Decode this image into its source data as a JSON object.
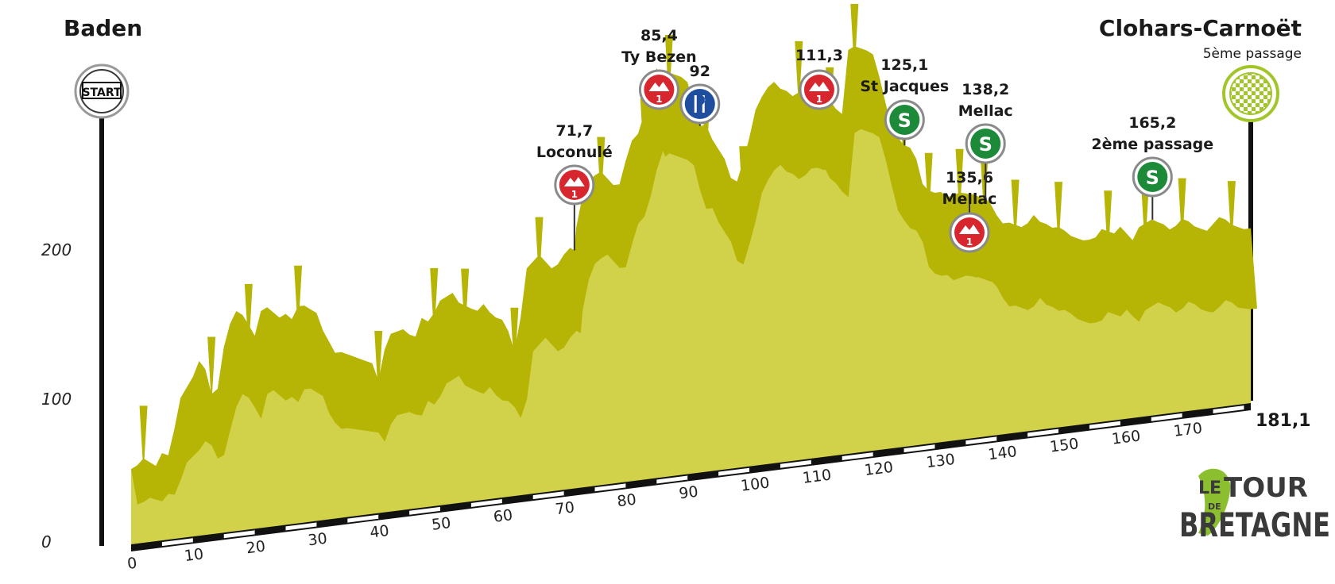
{
  "chart_data": {
    "type": "area",
    "start_city": "Baden",
    "finish_city": "Clohars-Carnoët",
    "finish_note": "5ème passage",
    "start_label": "START",
    "total_distance_label": "181,1",
    "xmax": 181.1,
    "ylim": [
      0,
      240
    ],
    "xticks": [
      0,
      10,
      20,
      30,
      40,
      50,
      60,
      70,
      80,
      90,
      100,
      110,
      120,
      130,
      140,
      150,
      160,
      170
    ],
    "yticks": [
      0,
      100,
      200
    ],
    "profile": [
      [
        0,
        52
      ],
      [
        1,
        54
      ],
      [
        2,
        58
      ],
      [
        4,
        52
      ],
      [
        5,
        60
      ],
      [
        6,
        58
      ],
      [
        7,
        75
      ],
      [
        8,
        95
      ],
      [
        10,
        108
      ],
      [
        11,
        118
      ],
      [
        12,
        112
      ],
      [
        13,
        95
      ],
      [
        14,
        98
      ],
      [
        15,
        125
      ],
      [
        16,
        140
      ],
      [
        17,
        148
      ],
      [
        18,
        145
      ],
      [
        19,
        138
      ],
      [
        20,
        130
      ],
      [
        21,
        146
      ],
      [
        22,
        148
      ],
      [
        24,
        140
      ],
      [
        25,
        142
      ],
      [
        26,
        138
      ],
      [
        27,
        146
      ],
      [
        28,
        146
      ],
      [
        30,
        140
      ],
      [
        31,
        128
      ],
      [
        32,
        120
      ],
      [
        33,
        112
      ],
      [
        34,
        112
      ],
      [
        36,
        108
      ],
      [
        38,
        104
      ],
      [
        39,
        102
      ],
      [
        40,
        90
      ],
      [
        41,
        110
      ],
      [
        42,
        120
      ],
      [
        44,
        122
      ],
      [
        45,
        118
      ],
      [
        46,
        116
      ],
      [
        47,
        128
      ],
      [
        48,
        125
      ],
      [
        49,
        130
      ],
      [
        50,
        138
      ],
      [
        52,
        142
      ],
      [
        53,
        135
      ],
      [
        55,
        130
      ],
      [
        56,
        128
      ],
      [
        57,
        132
      ],
      [
        58,
        126
      ],
      [
        59,
        122
      ],
      [
        60,
        120
      ],
      [
        61,
        112
      ],
      [
        62,
        98
      ],
      [
        63,
        120
      ],
      [
        64,
        152
      ],
      [
        66,
        160
      ],
      [
        67,
        155
      ],
      [
        68,
        150
      ],
      [
        69,
        152
      ],
      [
        70,
        158
      ],
      [
        71,
        162
      ],
      [
        71.7,
        160
      ],
      [
        72,
        175
      ],
      [
        73,
        195
      ],
      [
        74,
        205
      ],
      [
        75,
        208
      ],
      [
        76,
        210
      ],
      [
        77,
        205
      ],
      [
        78,
        200
      ],
      [
        79,
        200
      ],
      [
        80,
        215
      ],
      [
        81,
        228
      ],
      [
        82,
        232
      ],
      [
        83,
        245
      ],
      [
        84,
        262
      ],
      [
        85,
        274
      ],
      [
        85.4,
        270
      ],
      [
        86,
        272
      ],
      [
        87,
        270
      ],
      [
        88,
        268
      ],
      [
        89,
        266
      ],
      [
        90,
        262
      ],
      [
        91,
        245
      ],
      [
        92,
        232
      ],
      [
        93,
        232
      ],
      [
        94,
        222
      ],
      [
        95,
        215
      ],
      [
        96,
        208
      ],
      [
        97,
        195
      ],
      [
        98,
        192
      ],
      [
        99,
        205
      ],
      [
        100,
        220
      ],
      [
        101,
        238
      ],
      [
        102,
        246
      ],
      [
        103,
        252
      ],
      [
        104,
        255
      ],
      [
        105,
        250
      ],
      [
        106,
        248
      ],
      [
        107,
        244
      ],
      [
        108,
        246
      ],
      [
        109,
        250
      ],
      [
        110,
        250
      ],
      [
        111,
        248
      ],
      [
        111.3,
        248
      ],
      [
        112,
        242
      ],
      [
        113,
        238
      ],
      [
        114,
        232
      ],
      [
        115,
        228
      ],
      [
        116,
        270
      ],
      [
        117,
        272
      ],
      [
        118,
        270
      ],
      [
        119,
        268
      ],
      [
        120,
        265
      ],
      [
        121,
        250
      ],
      [
        122,
        232
      ],
      [
        123,
        215
      ],
      [
        124,
        208
      ],
      [
        125,
        202
      ],
      [
        125.1,
        202
      ],
      [
        126,
        200
      ],
      [
        127,
        192
      ],
      [
        128,
        175
      ],
      [
        129,
        170
      ],
      [
        130,
        168
      ],
      [
        131,
        168
      ],
      [
        132,
        164
      ],
      [
        133,
        165
      ],
      [
        134,
        166
      ],
      [
        135,
        165
      ],
      [
        135.6,
        164
      ],
      [
        136,
        164
      ],
      [
        137,
        162
      ],
      [
        138,
        160
      ],
      [
        138.2,
        160
      ],
      [
        139,
        156
      ],
      [
        140,
        148
      ],
      [
        141,
        142
      ],
      [
        142,
        142
      ],
      [
        143,
        140
      ],
      [
        144,
        138
      ],
      [
        145,
        140
      ],
      [
        146,
        145
      ],
      [
        147,
        140
      ],
      [
        148,
        138
      ],
      [
        149,
        135
      ],
      [
        150,
        135
      ],
      [
        151,
        132
      ],
      [
        152,
        128
      ],
      [
        153,
        126
      ],
      [
        154,
        124
      ],
      [
        155,
        124
      ],
      [
        156,
        125
      ],
      [
        157,
        130
      ],
      [
        158,
        128
      ],
      [
        159,
        126
      ],
      [
        160,
        130
      ],
      [
        161,
        125
      ],
      [
        162,
        120
      ],
      [
        163,
        128
      ],
      [
        164,
        130
      ],
      [
        165,
        132
      ],
      [
        165.2,
        132
      ],
      [
        166,
        130
      ],
      [
        167,
        128
      ],
      [
        168,
        124
      ],
      [
        169,
        126
      ],
      [
        170,
        130
      ],
      [
        171,
        128
      ],
      [
        172,
        124
      ],
      [
        173,
        122
      ],
      [
        174,
        120
      ],
      [
        175,
        124
      ],
      [
        176,
        128
      ],
      [
        177,
        126
      ],
      [
        178,
        122
      ],
      [
        179,
        120
      ],
      [
        180,
        118
      ],
      [
        181.1,
        118
      ]
    ],
    "dips": [
      [
        2,
        48
      ],
      [
        13,
        88
      ],
      [
        19,
        120
      ],
      [
        27,
        128
      ],
      [
        40,
        78
      ],
      [
        49,
        115
      ],
      [
        54,
        112
      ],
      [
        62,
        82
      ],
      [
        66,
        140
      ],
      [
        70,
        108
      ],
      [
        76,
        188
      ],
      [
        83,
        210
      ],
      [
        87,
        250
      ],
      [
        93,
        205
      ],
      [
        99,
        170
      ],
      [
        108,
        235
      ],
      [
        113,
        215
      ],
      [
        117,
        255
      ],
      [
        125,
        185
      ],
      [
        129,
        150
      ],
      [
        134,
        150
      ],
      [
        138,
        145
      ],
      [
        143,
        125
      ],
      [
        150,
        120
      ],
      [
        158,
        110
      ],
      [
        164,
        112
      ],
      [
        170,
        112
      ],
      [
        178,
        106
      ]
    ],
    "markers": [
      {
        "km": 71.7,
        "type": "climb",
        "category": "1",
        "lines": [
          "71,7",
          "Loconulé"
        ]
      },
      {
        "km": 85.4,
        "type": "climb",
        "category": "1",
        "lines": [
          "85,4",
          "Ty Bezen"
        ]
      },
      {
        "km": 92,
        "type": "feed",
        "lines": [
          "92"
        ]
      },
      {
        "km": 111.3,
        "type": "climb",
        "category": "1",
        "lines": [
          "111,3"
        ]
      },
      {
        "km": 125.1,
        "type": "sprint",
        "letter": "S",
        "lines": [
          "125,1",
          "St Jacques"
        ]
      },
      {
        "km": 135.6,
        "type": "climb",
        "category": "1",
        "lines": [
          "135,6",
          "Mellac"
        ]
      },
      {
        "km": 138.2,
        "type": "sprint",
        "letter": "S",
        "lines": [
          "138,2",
          "Mellac"
        ]
      },
      {
        "km": 165.2,
        "type": "sprint",
        "letter": "S",
        "lines": [
          "165,2",
          "2ème passage"
        ]
      }
    ],
    "colors": {
      "fill_light": "#d2d14a",
      "fill_dark": "#b6b404",
      "climb_red": "#d7262e",
      "sprint_green": "#1d8a3a",
      "feed_blue": "#1f4e9e",
      "finish_green": "#a2c62a",
      "axis": "#111111"
    },
    "icons": {
      "climb": "mountain-icon",
      "feed": "fork-knife-icon",
      "sprint": "sprint-s-icon",
      "finish": "checkered-flag-icon",
      "start": "start-sign-icon"
    }
  },
  "logo": {
    "line1": "LE",
    "line2": "TOUR",
    "small": "DE",
    "line3": "BRETAGNE",
    "accent": "#8cbf2f"
  }
}
